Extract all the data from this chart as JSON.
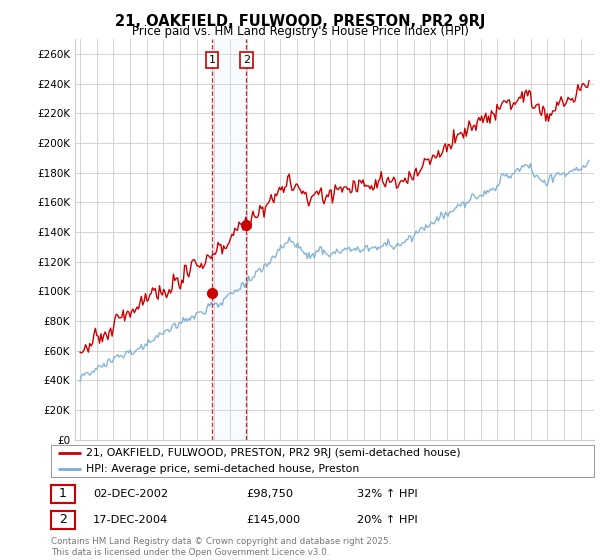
{
  "title": "21, OAKFIELD, FULWOOD, PRESTON, PR2 9RJ",
  "subtitle": "Price paid vs. HM Land Registry's House Price Index (HPI)",
  "footer": "Contains HM Land Registry data © Crown copyright and database right 2025.\nThis data is licensed under the Open Government Licence v3.0.",
  "legend_line1": "21, OAKFIELD, FULWOOD, PRESTON, PR2 9RJ (semi-detached house)",
  "legend_line2": "HPI: Average price, semi-detached house, Preston",
  "sale1_date": "02-DEC-2002",
  "sale1_price": "£98,750",
  "sale1_hpi": "32% ↑ HPI",
  "sale2_date": "17-DEC-2004",
  "sale2_price": "£145,000",
  "sale2_hpi": "20% ↑ HPI",
  "red_color": "#cc0000",
  "blue_color": "#7aadd4",
  "shade_color": "#ddeeff",
  "grid_color": "#cccccc",
  "bg_color": "#ffffff",
  "title_color": "#000000",
  "ylim": [
    0,
    270000
  ],
  "yticks": [
    0,
    20000,
    40000,
    60000,
    80000,
    100000,
    120000,
    140000,
    160000,
    180000,
    200000,
    220000,
    240000,
    260000
  ],
  "sale1_x": 2002.92,
  "sale1_y": 98750,
  "sale2_x": 2004.96,
  "sale2_y": 145000,
  "xmin": 1994.7,
  "xmax": 2025.8
}
